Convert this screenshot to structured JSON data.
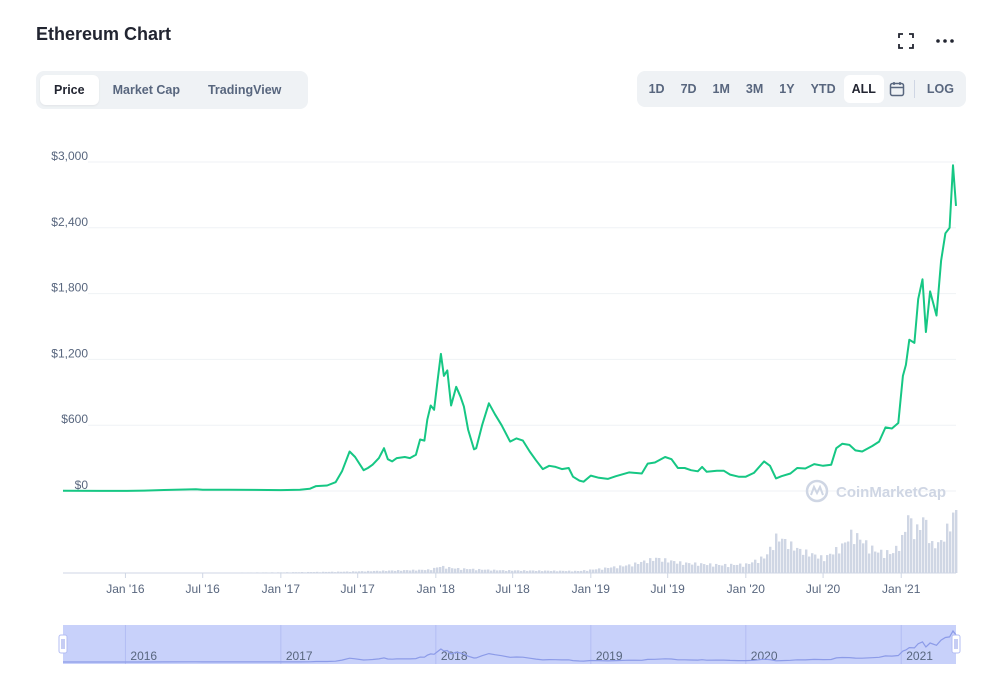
{
  "header": {
    "title": "Ethereum Chart"
  },
  "tabs": [
    {
      "label": "Price",
      "active": true
    },
    {
      "label": "Market Cap",
      "active": false
    },
    {
      "label": "TradingView",
      "active": false
    }
  ],
  "ranges": [
    {
      "label": "1D",
      "active": false
    },
    {
      "label": "7D",
      "active": false
    },
    {
      "label": "1M",
      "active": false
    },
    {
      "label": "3M",
      "active": false
    },
    {
      "label": "1Y",
      "active": false
    },
    {
      "label": "YTD",
      "active": false
    },
    {
      "label": "ALL",
      "active": true
    }
  ],
  "log_label": "LOG",
  "icons": {
    "fullscreen": "fullscreen-icon",
    "more": "more-icon",
    "calendar": "calendar-icon"
  },
  "watermark": "CoinMarketCap",
  "colors": {
    "line": "#16c784",
    "volume": "#cfd6e4",
    "navigator_fill": "#c8d1fa",
    "navigator_line": "#8c9be8",
    "text_muted": "#58667e"
  },
  "chart_data": {
    "type": "line",
    "title": "Ethereum Chart",
    "y_unit": "USD",
    "ylim": [
      0,
      3000
    ],
    "y_ticks": [
      "$3,000",
      "$2,400",
      "$1,800",
      "$1,200",
      "$600",
      "$0"
    ],
    "y_tick_values": [
      3000,
      2400,
      1800,
      1200,
      600,
      0
    ],
    "x_range": [
      "2015-08-07",
      "2021-05-10"
    ],
    "x_ticks": [
      {
        "label": "Jan '16",
        "date": "2016-01-01"
      },
      {
        "label": "Jul '16",
        "date": "2016-07-01"
      },
      {
        "label": "Jan '17",
        "date": "2017-01-01"
      },
      {
        "label": "Jul '17",
        "date": "2017-07-01"
      },
      {
        "label": "Jan '18",
        "date": "2018-01-01"
      },
      {
        "label": "Jul '18",
        "date": "2018-07-01"
      },
      {
        "label": "Jan '19",
        "date": "2019-01-01"
      },
      {
        "label": "Jul '19",
        "date": "2019-07-01"
      },
      {
        "label": "Jan '20",
        "date": "2020-01-01"
      },
      {
        "label": "Jul '20",
        "date": "2020-07-01"
      },
      {
        "label": "Jan '21",
        "date": "2021-01-01"
      }
    ],
    "navigator_labels": [
      {
        "label": "2016",
        "date": "2016-01-01"
      },
      {
        "label": "2017",
        "date": "2017-01-01"
      },
      {
        "label": "2018",
        "date": "2018-01-01"
      },
      {
        "label": "2019",
        "date": "2019-01-01"
      },
      {
        "label": "2020",
        "date": "2020-01-01"
      },
      {
        "label": "2021",
        "date": "2021-01-01"
      }
    ],
    "grid": true,
    "series": [
      {
        "points": [
          [
            "2015-08-07",
            3
          ],
          [
            "2015-11-01",
            1
          ],
          [
            "2016-01-01",
            1
          ],
          [
            "2016-02-15",
            4
          ],
          [
            "2016-04-01",
            9
          ],
          [
            "2016-06-15",
            16
          ],
          [
            "2016-07-01",
            12
          ],
          [
            "2016-09-01",
            12
          ],
          [
            "2016-11-01",
            10
          ],
          [
            "2017-01-01",
            8
          ],
          [
            "2017-02-15",
            12
          ],
          [
            "2017-03-10",
            20
          ],
          [
            "2017-03-25",
            45
          ],
          [
            "2017-04-20",
            50
          ],
          [
            "2017-05-10",
            80
          ],
          [
            "2017-05-25",
            180
          ],
          [
            "2017-06-12",
            360
          ],
          [
            "2017-06-25",
            310
          ],
          [
            "2017-07-15",
            190
          ],
          [
            "2017-07-25",
            210
          ],
          [
            "2017-08-05",
            240
          ],
          [
            "2017-08-20",
            300
          ],
          [
            "2017-09-01",
            390
          ],
          [
            "2017-09-10",
            290
          ],
          [
            "2017-09-20",
            270
          ],
          [
            "2017-10-01",
            300
          ],
          [
            "2017-10-20",
            310
          ],
          [
            "2017-11-01",
            300
          ],
          [
            "2017-11-15",
            330
          ],
          [
            "2017-11-25",
            470
          ],
          [
            "2017-12-05",
            460
          ],
          [
            "2017-12-12",
            650
          ],
          [
            "2017-12-20",
            780
          ],
          [
            "2017-12-28",
            740
          ],
          [
            "2018-01-05",
            1000
          ],
          [
            "2018-01-13",
            1250
          ],
          [
            "2018-01-20",
            1050
          ],
          [
            "2018-01-28",
            1100
          ],
          [
            "2018-02-06",
            780
          ],
          [
            "2018-02-18",
            950
          ],
          [
            "2018-02-28",
            860
          ],
          [
            "2018-03-08",
            770
          ],
          [
            "2018-03-18",
            560
          ],
          [
            "2018-04-01",
            380
          ],
          [
            "2018-04-06",
            390
          ],
          [
            "2018-04-20",
            600
          ],
          [
            "2018-05-06",
            800
          ],
          [
            "2018-05-20",
            700
          ],
          [
            "2018-06-05",
            600
          ],
          [
            "2018-06-25",
            450
          ],
          [
            "2018-07-10",
            480
          ],
          [
            "2018-07-25",
            460
          ],
          [
            "2018-08-10",
            360
          ],
          [
            "2018-08-25",
            280
          ],
          [
            "2018-09-10",
            200
          ],
          [
            "2018-09-25",
            230
          ],
          [
            "2018-10-10",
            220
          ],
          [
            "2018-10-25",
            200
          ],
          [
            "2018-11-10",
            210
          ],
          [
            "2018-11-20",
            130
          ],
          [
            "2018-12-05",
            95
          ],
          [
            "2018-12-15",
            85
          ],
          [
            "2019-01-01",
            140
          ],
          [
            "2019-01-20",
            120
          ],
          [
            "2019-02-10",
            110
          ],
          [
            "2019-03-01",
            135
          ],
          [
            "2019-04-01",
            170
          ],
          [
            "2019-05-01",
            160
          ],
          [
            "2019-05-15",
            250
          ],
          [
            "2019-06-01",
            260
          ],
          [
            "2019-06-25",
            310
          ],
          [
            "2019-07-10",
            290
          ],
          [
            "2019-07-25",
            210
          ],
          [
            "2019-08-10",
            210
          ],
          [
            "2019-08-25",
            190
          ],
          [
            "2019-09-10",
            180
          ],
          [
            "2019-09-20",
            220
          ],
          [
            "2019-10-01",
            175
          ],
          [
            "2019-10-25",
            185
          ],
          [
            "2019-11-10",
            185
          ],
          [
            "2019-11-25",
            150
          ],
          [
            "2019-12-15",
            130
          ],
          [
            "2020-01-01",
            130
          ],
          [
            "2020-01-20",
            165
          ],
          [
            "2020-02-13",
            270
          ],
          [
            "2020-02-27",
            230
          ],
          [
            "2020-03-12",
            115
          ],
          [
            "2020-03-25",
            135
          ],
          [
            "2020-04-15",
            160
          ],
          [
            "2020-05-01",
            210
          ],
          [
            "2020-05-20",
            205
          ],
          [
            "2020-06-10",
            245
          ],
          [
            "2020-07-01",
            230
          ],
          [
            "2020-07-20",
            240
          ],
          [
            "2020-08-01",
            390
          ],
          [
            "2020-08-15",
            430
          ],
          [
            "2020-09-01",
            420
          ],
          [
            "2020-09-15",
            370
          ],
          [
            "2020-10-01",
            360
          ],
          [
            "2020-10-25",
            410
          ],
          [
            "2020-11-10",
            450
          ],
          [
            "2020-11-25",
            580
          ],
          [
            "2020-12-10",
            570
          ],
          [
            "2020-12-25",
            620
          ],
          [
            "2021-01-05",
            1050
          ],
          [
            "2021-01-12",
            1150
          ],
          [
            "2021-01-20",
            1380
          ],
          [
            "2021-02-01",
            1350
          ],
          [
            "2021-02-10",
            1750
          ],
          [
            "2021-02-20",
            1930
          ],
          [
            "2021-02-28",
            1450
          ],
          [
            "2021-03-10",
            1820
          ],
          [
            "2021-03-25",
            1600
          ],
          [
            "2021-04-05",
            2100
          ],
          [
            "2021-04-15",
            2350
          ],
          [
            "2021-04-25",
            2400
          ],
          [
            "2021-05-03",
            2970
          ],
          [
            "2021-05-10",
            2600
          ]
        ]
      }
    ],
    "volume": {
      "points": [
        [
          "2016-01-01",
          0.0
        ],
        [
          "2017-01-01",
          0.01
        ],
        [
          "2017-06-01",
          0.02
        ],
        [
          "2017-12-15",
          0.05
        ],
        [
          "2018-01-10",
          0.1
        ],
        [
          "2018-02-10",
          0.07
        ],
        [
          "2018-06-01",
          0.04
        ],
        [
          "2018-12-01",
          0.03
        ],
        [
          "2019-01-15",
          0.06
        ],
        [
          "2019-04-01",
          0.12
        ],
        [
          "2019-06-01",
          0.22
        ],
        [
          "2019-08-01",
          0.15
        ],
        [
          "2019-11-01",
          0.12
        ],
        [
          "2020-01-01",
          0.13
        ],
        [
          "2020-02-15",
          0.25
        ],
        [
          "2020-03-12",
          0.55
        ],
        [
          "2020-05-01",
          0.35
        ],
        [
          "2020-07-01",
          0.22
        ],
        [
          "2020-08-15",
          0.42
        ],
        [
          "2020-09-05",
          0.6
        ],
        [
          "2020-11-01",
          0.32
        ],
        [
          "2020-12-10",
          0.3
        ],
        [
          "2021-01-05",
          0.55
        ],
        [
          "2021-01-12",
          0.9
        ],
        [
          "2021-02-01",
          0.6
        ],
        [
          "2021-02-22",
          0.85
        ],
        [
          "2021-03-10",
          0.42
        ],
        [
          "2021-04-01",
          0.45
        ],
        [
          "2021-04-20",
          0.7
        ],
        [
          "2021-05-10",
          0.99
        ]
      ]
    }
  }
}
